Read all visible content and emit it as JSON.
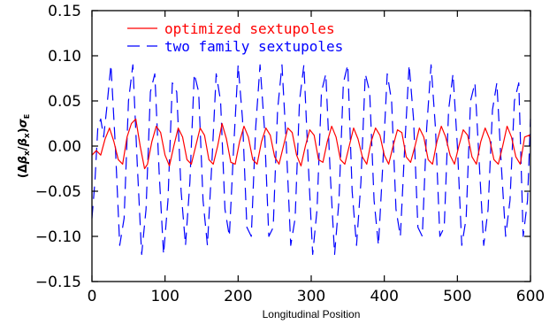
{
  "chart_data": {
    "type": "line",
    "xlabel": "Longitudinal Position",
    "ylabel_parts": {
      "open": "(",
      "delta1": "Δ",
      "beta1": "β",
      "sub1": "x",
      "slash": "/",
      "beta2": "β",
      "sub2": "x",
      "close": ")",
      "sigma": "σ",
      "subE": "E"
    },
    "xlim": [
      0,
      600
    ],
    "ylim": [
      -0.15,
      0.15
    ],
    "x_ticks": [
      0,
      100,
      200,
      300,
      400,
      500,
      600
    ],
    "x_tick_labels": [
      "0",
      "100",
      "200",
      "300",
      "400",
      "500",
      "600"
    ],
    "y_ticks": [
      -0.15,
      -0.1,
      -0.05,
      0.0,
      0.05,
      0.1,
      0.15
    ],
    "y_tick_labels": [
      "−0.15",
      "−0.10",
      "−0.05",
      "0.00",
      "0.05",
      "0.10",
      "0.15"
    ],
    "grid": false,
    "legend_position": "top-left",
    "series": [
      {
        "name": "optimized sextupoles",
        "color": "#ff0000",
        "dash": "solid",
        "x": [
          0,
          6,
          12,
          18,
          24,
          30,
          36,
          42,
          48,
          54,
          60,
          66,
          72,
          76,
          82,
          88,
          94,
          100,
          106,
          112,
          118,
          124,
          130,
          136,
          142,
          148,
          154,
          160,
          166,
          172,
          178,
          184,
          190,
          196,
          202,
          208,
          214,
          220,
          226,
          232,
          238,
          244,
          250,
          256,
          262,
          268,
          274,
          280,
          286,
          292,
          298,
          304,
          310,
          316,
          322,
          328,
          334,
          340,
          346,
          352,
          358,
          364,
          370,
          376,
          382,
          388,
          394,
          400,
          406,
          412,
          418,
          424,
          430,
          436,
          442,
          448,
          454,
          460,
          466,
          472,
          478,
          484,
          490,
          496,
          502,
          508,
          514,
          520,
          526,
          532,
          538,
          544,
          550,
          556,
          562,
          568,
          574,
          580,
          586,
          592,
          598,
          600
        ],
        "values": [
          -0.01,
          -0.005,
          -0.01,
          0.008,
          0.02,
          0.005,
          -0.015,
          -0.02,
          0.01,
          0.025,
          0.03,
          0.0,
          -0.025,
          -0.02,
          0.005,
          0.022,
          0.015,
          -0.01,
          -0.022,
          0.0,
          0.02,
          0.01,
          -0.015,
          -0.02,
          0.0,
          0.02,
          0.012,
          -0.015,
          -0.02,
          0.0,
          0.025,
          0.008,
          -0.018,
          -0.02,
          0.005,
          0.022,
          0.01,
          -0.015,
          -0.02,
          0.005,
          0.02,
          0.012,
          -0.012,
          -0.02,
          0.0,
          0.02,
          0.015,
          -0.01,
          -0.022,
          0.0,
          0.018,
          0.012,
          -0.015,
          -0.018,
          0.005,
          0.022,
          0.01,
          -0.015,
          -0.02,
          0.0,
          0.02,
          0.008,
          -0.012,
          -0.02,
          0.005,
          0.02,
          0.012,
          -0.01,
          -0.02,
          0.0,
          0.018,
          0.015,
          -0.012,
          -0.018,
          0.0,
          0.02,
          0.01,
          -0.015,
          -0.02,
          0.005,
          0.022,
          0.01,
          -0.01,
          -0.02,
          0.0,
          0.018,
          0.012,
          -0.012,
          -0.02,
          0.005,
          0.02,
          0.008,
          -0.015,
          -0.02,
          0.0,
          0.022,
          0.01,
          -0.012,
          -0.02,
          0.01,
          0.012,
          0.01
        ]
      },
      {
        "name": "two family sextupoles",
        "color": "#0000ff",
        "dash": "long-dash",
        "x": [
          0,
          4,
          8,
          12,
          16,
          20,
          26,
          32,
          38,
          44,
          50,
          56,
          62,
          68,
          74,
          80,
          86,
          92,
          98,
          104,
          110,
          116,
          122,
          128,
          134,
          140,
          146,
          152,
          158,
          164,
          170,
          176,
          182,
          188,
          194,
          200,
          206,
          212,
          218,
          224,
          230,
          236,
          242,
          248,
          254,
          260,
          266,
          272,
          278,
          284,
          290,
          296,
          302,
          308,
          314,
          320,
          326,
          332,
          338,
          344,
          350,
          356,
          362,
          368,
          374,
          380,
          386,
          392,
          398,
          404,
          410,
          416,
          422,
          428,
          434,
          440,
          446,
          452,
          458,
          464,
          470,
          476,
          482,
          488,
          494,
          500,
          506,
          512,
          518,
          524,
          530,
          536,
          542,
          548,
          554,
          560,
          566,
          572,
          578,
          584,
          590,
          596,
          600
        ],
        "values": [
          -0.08,
          -0.04,
          0.02,
          0.03,
          0.01,
          0.04,
          0.09,
          0.0,
          -0.11,
          -0.08,
          0.05,
          0.09,
          -0.02,
          -0.12,
          -0.07,
          0.06,
          0.08,
          -0.03,
          -0.12,
          -0.06,
          0.07,
          0.06,
          -0.05,
          -0.11,
          -0.04,
          0.08,
          0.06,
          -0.06,
          -0.11,
          -0.02,
          0.08,
          0.05,
          -0.07,
          -0.1,
          0.0,
          0.09,
          0.03,
          -0.09,
          -0.1,
          0.02,
          0.09,
          0.02,
          -0.1,
          -0.09,
          0.04,
          0.09,
          0.0,
          -0.11,
          -0.08,
          0.05,
          0.09,
          -0.02,
          -0.12,
          -0.07,
          0.06,
          0.08,
          -0.03,
          -0.12,
          -0.06,
          0.07,
          0.09,
          -0.05,
          -0.11,
          -0.04,
          0.08,
          0.06,
          -0.06,
          -0.11,
          -0.02,
          0.08,
          0.05,
          -0.07,
          -0.1,
          0.0,
          0.09,
          0.03,
          -0.09,
          -0.1,
          0.02,
          0.09,
          0.02,
          -0.1,
          -0.09,
          0.04,
          0.08,
          0.0,
          -0.11,
          -0.08,
          0.05,
          0.07,
          -0.02,
          -0.11,
          -0.07,
          0.04,
          0.07,
          -0.02,
          -0.1,
          -0.06,
          0.05,
          0.07,
          -0.1,
          -0.06,
          0.03
        ]
      }
    ]
  }
}
